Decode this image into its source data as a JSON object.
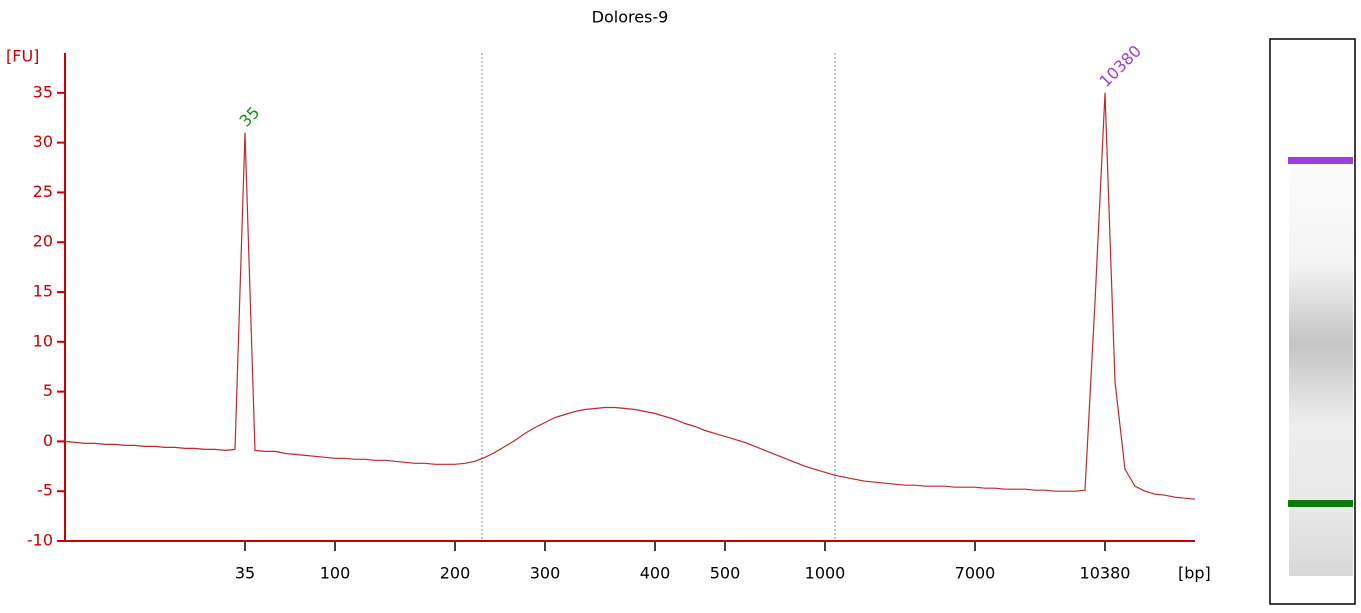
{
  "chart_data": {
    "type": "line",
    "title": "Dolores-9",
    "y_label": "[FU]",
    "x_label": "[bp]",
    "axis_color": "#cc0000",
    "grid": false,
    "ylim": [
      -10,
      39
    ],
    "yticks": [
      -10,
      -5,
      0,
      5,
      10,
      15,
      20,
      25,
      30,
      35
    ],
    "categories": [
      null,
      null,
      null,
      null,
      null,
      null,
      null,
      null,
      null,
      null,
      null,
      null,
      null,
      null,
      null,
      null,
      null,
      null,
      "35",
      null,
      null,
      null,
      null,
      null,
      null,
      null,
      null,
      "100",
      null,
      null,
      null,
      null,
      null,
      null,
      null,
      null,
      null,
      null,
      null,
      "200",
      null,
      null,
      null,
      null,
      null,
      null,
      null,
      null,
      "300",
      null,
      null,
      null,
      null,
      null,
      null,
      null,
      null,
      null,
      null,
      "400",
      null,
      null,
      null,
      null,
      null,
      null,
      "500",
      null,
      null,
      null,
      null,
      null,
      null,
      null,
      null,
      null,
      "1000",
      null,
      null,
      null,
      null,
      null,
      null,
      null,
      null,
      null,
      null,
      null,
      null,
      null,
      null,
      "7000",
      null,
      null,
      null,
      null,
      null,
      null,
      null,
      null,
      null,
      null,
      null,
      null,
      "10380",
      null,
      null,
      null,
      null,
      null,
      null,
      null,
      null,
      null
    ],
    "series": [
      {
        "name": "Dolores-9",
        "color": "#c0282a",
        "values": [
          0,
          -0.1,
          -0.2,
          -0.2,
          -0.3,
          -0.3,
          -0.4,
          -0.4,
          -0.5,
          -0.5,
          -0.6,
          -0.6,
          -0.7,
          -0.7,
          -0.8,
          -0.8,
          -0.9,
          -0.8,
          31,
          -0.9,
          -1.0,
          -1.0,
          -1.2,
          -1.3,
          -1.4,
          -1.5,
          -1.6,
          -1.7,
          -1.7,
          -1.8,
          -1.8,
          -1.9,
          -1.9,
          -2.0,
          -2.1,
          -2.2,
          -2.2,
          -2.3,
          -2.3,
          -2.3,
          -2.2,
          -2.0,
          -1.6,
          -1.1,
          -0.5,
          0.1,
          0.8,
          1.4,
          1.9,
          2.4,
          2.7,
          3.0,
          3.2,
          3.3,
          3.4,
          3.4,
          3.3,
          3.2,
          3.0,
          2.8,
          2.5,
          2.2,
          1.8,
          1.5,
          1.1,
          0.8,
          0.5,
          0.2,
          -0.1,
          -0.5,
          -0.9,
          -1.3,
          -1.7,
          -2.1,
          -2.5,
          -2.8,
          -3.1,
          -3.4,
          -3.6,
          -3.8,
          -4.0,
          -4.1,
          -4.2,
          -4.3,
          -4.4,
          -4.4,
          -4.5,
          -4.5,
          -4.5,
          -4.6,
          -4.6,
          -4.6,
          -4.7,
          -4.7,
          -4.8,
          -4.8,
          -4.8,
          -4.9,
          -4.9,
          -5.0,
          -5.0,
          -5.0,
          -4.9,
          14,
          35,
          6,
          -2.8,
          -4.5,
          -5.0,
          -5.3,
          -5.4,
          -5.6,
          -5.7,
          -5.8
        ]
      }
    ],
    "annotations": [
      {
        "text": "35",
        "category": "35",
        "color": "#1a8a1a"
      },
      {
        "text": "10380",
        "category": "10380",
        "color": "#9b3de0"
      }
    ]
  }
}
